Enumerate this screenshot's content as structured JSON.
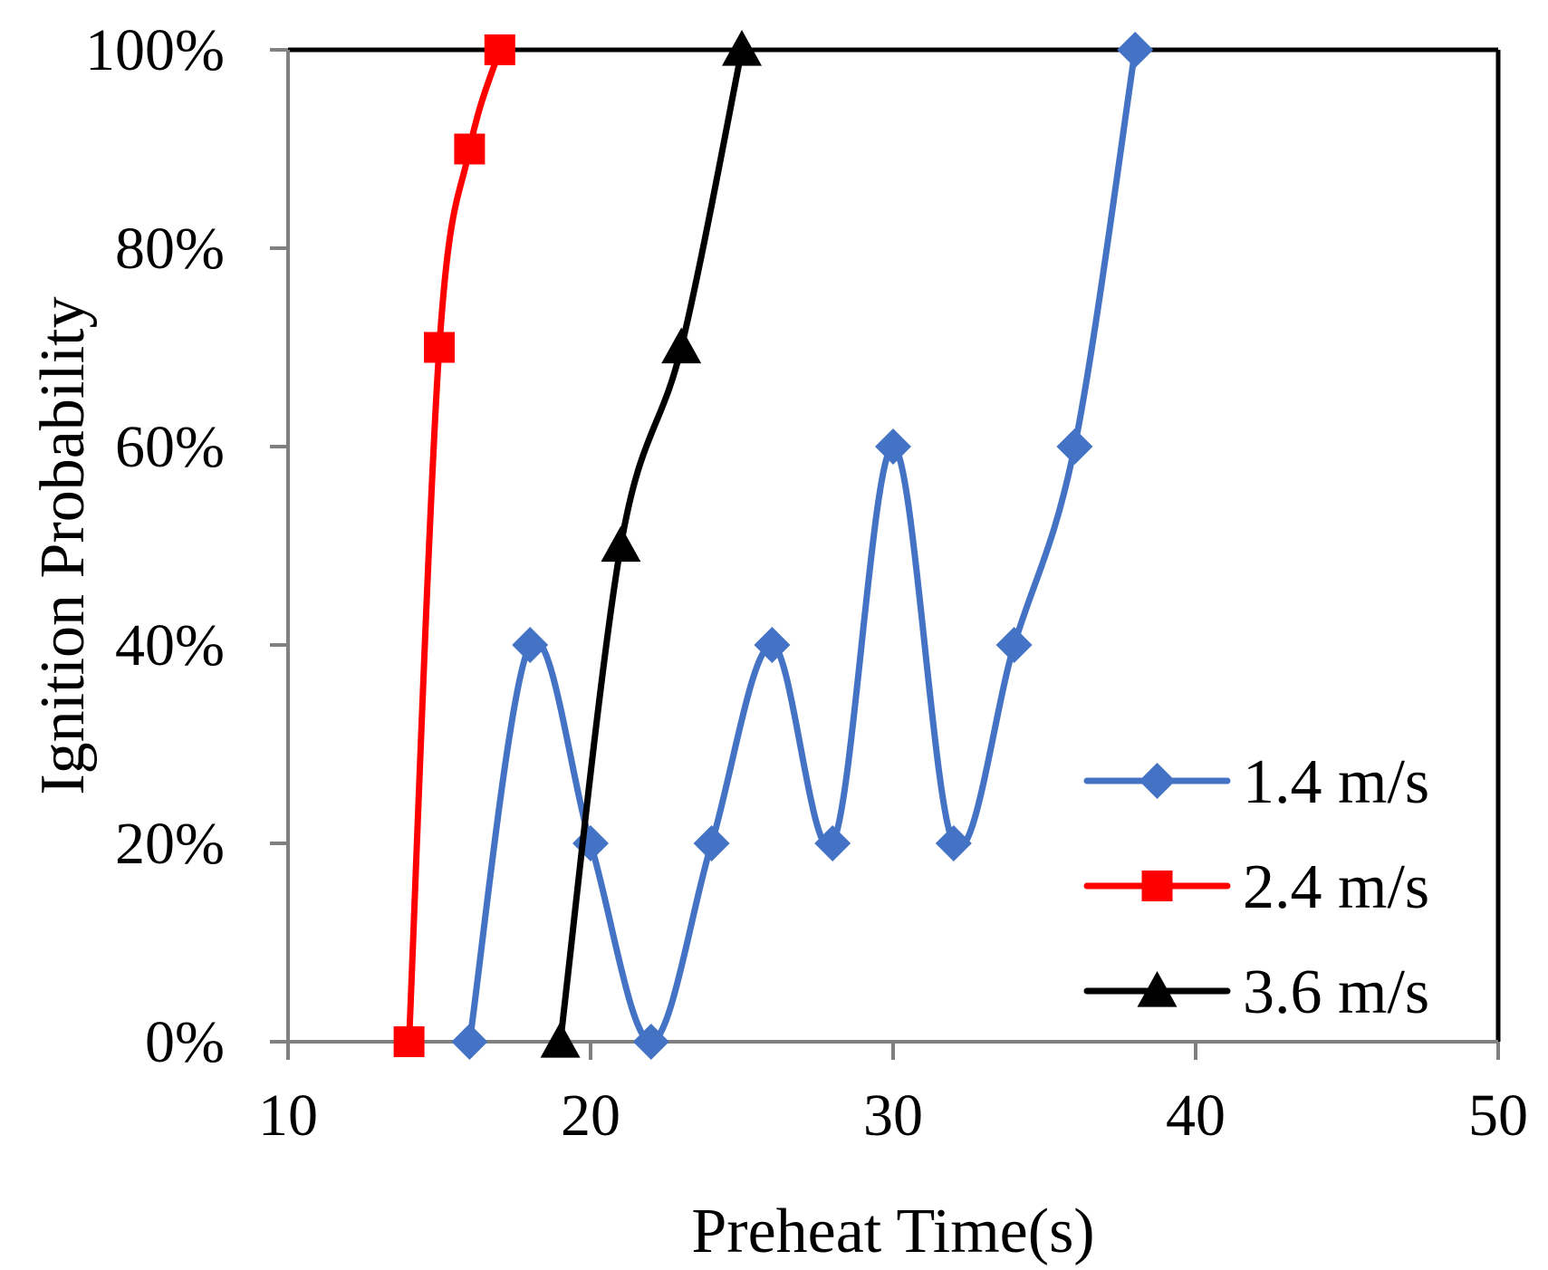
{
  "chart_data": {
    "type": "line",
    "smooth": true,
    "xlabel": "Preheat Time(s)",
    "ylabel": "Ignition Probability",
    "xlim": [
      10,
      50
    ],
    "ylim": [
      0,
      100
    ],
    "x_ticks": [
      "10",
      "20",
      "30",
      "40",
      "50"
    ],
    "y_ticks": [
      "0%",
      "20%",
      "40%",
      "60%",
      "80%",
      "100%"
    ],
    "legend_position": "bottom-right",
    "series": [
      {
        "name": "1.4 m/s",
        "color": "#4472C4",
        "marker": "diamond",
        "x": [
          16,
          18,
          20,
          22,
          24,
          26,
          28,
          30,
          32,
          34,
          36,
          38
        ],
        "values": [
          0,
          40,
          20,
          0,
          20,
          40,
          20,
          60,
          20,
          40,
          60,
          100
        ]
      },
      {
        "name": "2.4 m/s",
        "color": "#FF0000",
        "marker": "square",
        "x": [
          14,
          15,
          16,
          17
        ],
        "values": [
          0,
          70,
          90,
          100
        ]
      },
      {
        "name": "3.6 m/s",
        "color": "#000000",
        "marker": "triangle",
        "x": [
          19,
          21,
          23,
          25
        ],
        "values": [
          0,
          50,
          70,
          100
        ]
      }
    ]
  }
}
